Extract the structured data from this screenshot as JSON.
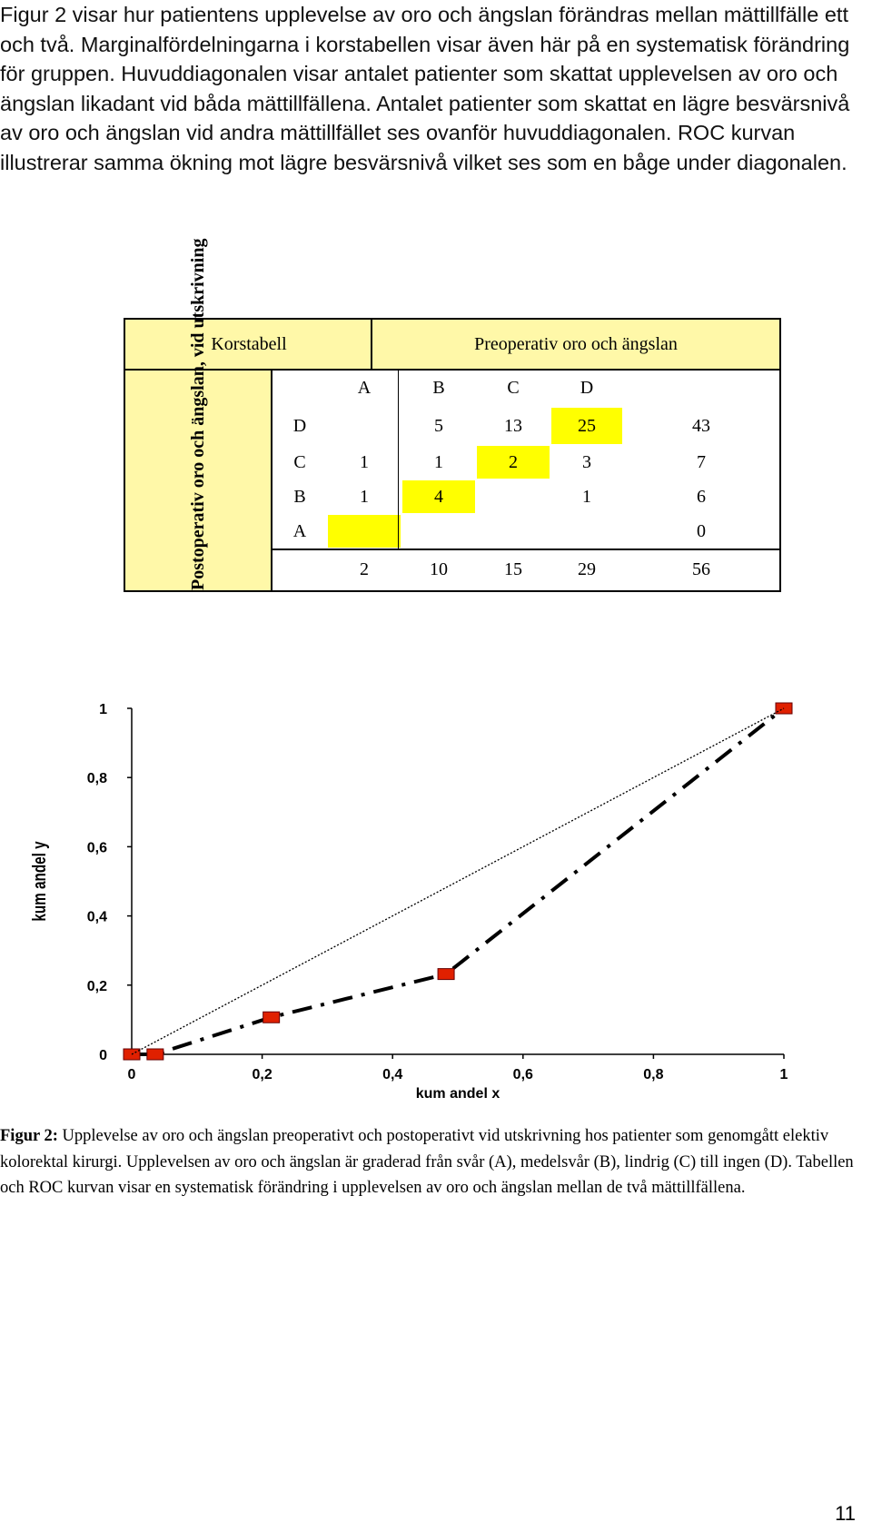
{
  "intro_text": "Figur 2 visar hur patientens upplevelse av oro och ängslan förändras mellan mättillfälle ett och två. Marginalfördelningarna i korstabellen visar även här på en systematisk förändring för gruppen. Huvuddiagonalen visar antalet patienter som skattat upplevelsen av oro och ängslan likadant vid båda mättillfällena. Antalet patienter som skattat en lägre besvärsnivå av oro och ängslan vid andra mättillfället ses ovanför huvuddiagonalen. ROC kurvan illustrerar samma ökning mot lägre besvärsnivå vilket ses som en båge under diagonalen.",
  "crosstab": {
    "title": "Korstabell",
    "col_header": "Preoperativ oro och ängslan",
    "row_header": "Postoperativ oro och ängslan, vid utskrivning",
    "columns": [
      "A",
      "B",
      "C",
      "D"
    ],
    "rows": [
      {
        "label": "D",
        "cells": [
          "",
          "5",
          "13",
          "25"
        ],
        "total": "43"
      },
      {
        "label": "C",
        "cells": [
          "1",
          "1",
          "2",
          "3"
        ],
        "total": "7"
      },
      {
        "label": "B",
        "cells": [
          "1",
          "4",
          "",
          "1"
        ],
        "total": "6"
      },
      {
        "label": "A",
        "cells": [
          "",
          "",
          "",
          ""
        ],
        "total": "0"
      }
    ],
    "col_totals": [
      "2",
      "10",
      "15",
      "29"
    ],
    "grand_total": "56",
    "highlight_color": "#ffff00",
    "background_color": "#fff8a8"
  },
  "chart_data": {
    "type": "line",
    "xlabel": "kum andel x",
    "ylabel": "kum andel y",
    "xlim": [
      0,
      1
    ],
    "ylim": [
      0,
      1
    ],
    "x_ticks": [
      "0",
      "0,2",
      "0,4",
      "0,6",
      "0,8",
      "1"
    ],
    "y_ticks": [
      "0",
      "0,2",
      "0,4",
      "0,6",
      "0,8",
      "1"
    ],
    "series": [
      {
        "style": "dash-dot",
        "marker_color": "#e02000",
        "points": [
          [
            0.0,
            0.0
          ],
          [
            0.036,
            0.0
          ],
          [
            0.214,
            0.107
          ],
          [
            0.482,
            0.232
          ],
          [
            1.0,
            1.0
          ]
        ]
      },
      {
        "style": "dotted",
        "points": [
          [
            0,
            0
          ],
          [
            1,
            1
          ]
        ]
      }
    ]
  },
  "caption": {
    "label": "Figur 2:",
    "text": " Upplevelse av oro och ängslan preoperativt och postoperativt vid utskrivning hos patienter som genomgått elektiv kolorektal kirurgi. Upplevelsen av oro och ängslan är graderad från svår (A), medelsvår (B), lindrig (C) till ingen (D). Tabellen och ROC kurvan visar en systematisk förändring i upplevelsen av oro och ängslan mellan de två mättillfällena."
  },
  "page_number": "11"
}
